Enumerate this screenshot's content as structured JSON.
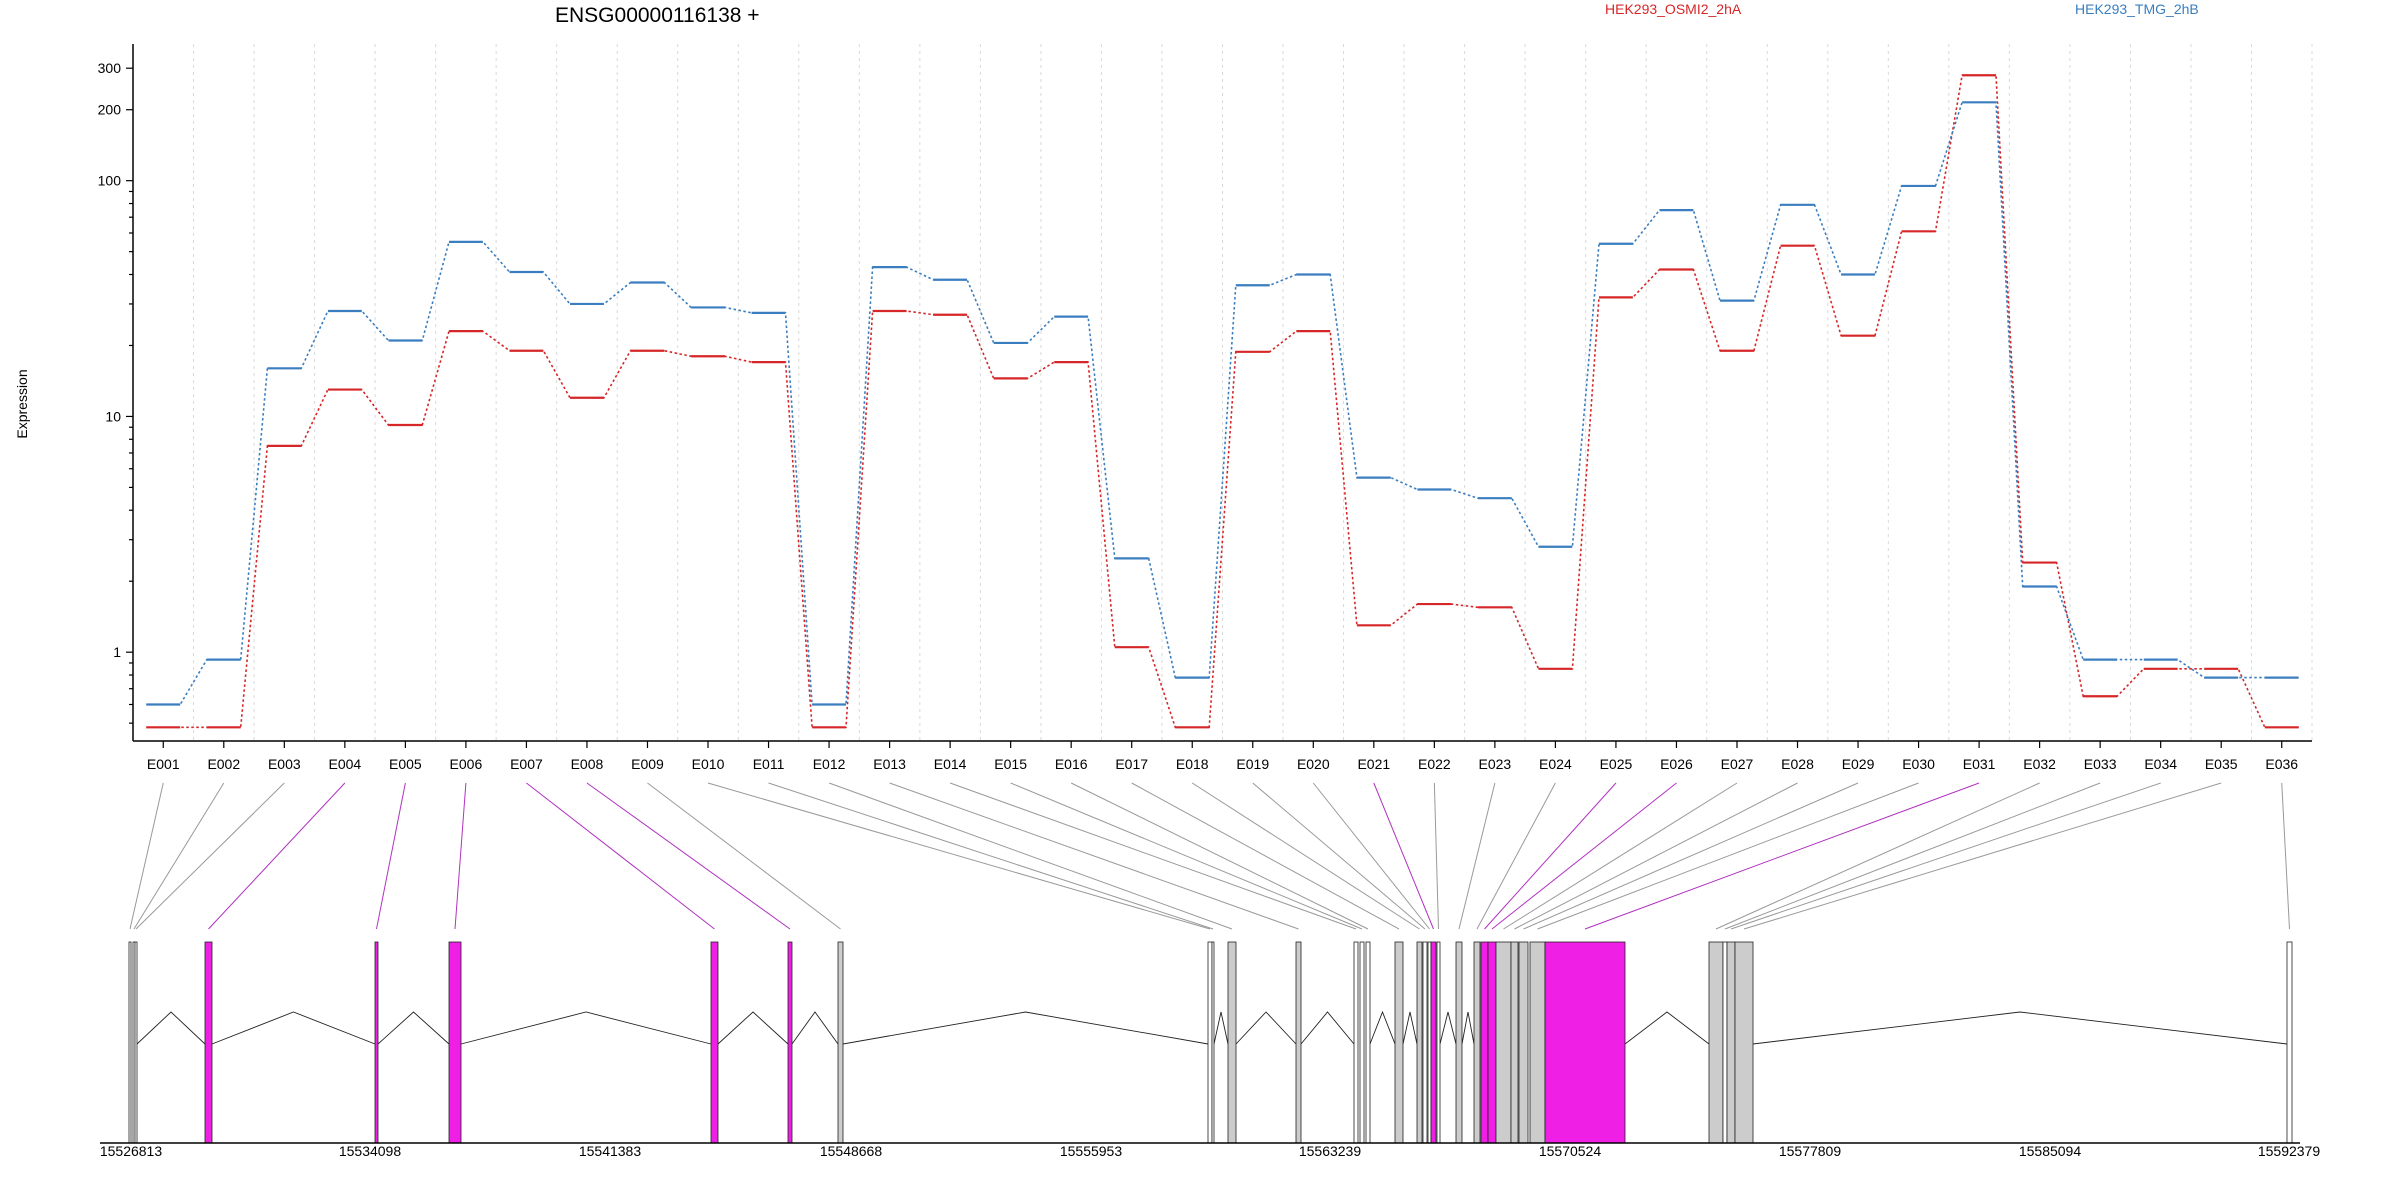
{
  "chart_data": {
    "type": "line",
    "title": "ENSG00000116138 +",
    "ylabel": "Expression",
    "yscale": "log",
    "ylim": [
      0.42,
      380
    ],
    "yticks": [
      1,
      10,
      100,
      200,
      300
    ],
    "grid": true,
    "legend_placement": "top",
    "categories": [
      "E001",
      "E002",
      "E003",
      "E004",
      "E005",
      "E006",
      "E007",
      "E008",
      "E009",
      "E010",
      "E011",
      "E012",
      "E013",
      "E014",
      "E015",
      "E016",
      "E017",
      "E018",
      "E019",
      "E020",
      "E021",
      "E022",
      "E023",
      "E024",
      "E025",
      "E026",
      "E027",
      "E028",
      "E029",
      "E030",
      "E031",
      "E032",
      "E033",
      "E034",
      "E035",
      "E036"
    ],
    "series": [
      {
        "name": "HEK293_OSMI2_2hA",
        "color": "#d62728",
        "values": [
          0.48,
          0.48,
          7.5,
          13,
          9.2,
          23,
          19,
          12,
          19,
          18,
          17,
          0.48,
          28,
          27,
          14.5,
          17,
          1.05,
          0.48,
          18.8,
          23,
          1.3,
          1.6,
          1.55,
          0.85,
          32,
          42,
          19,
          53,
          22,
          61,
          280,
          2.4,
          0.65,
          0.85,
          0.85,
          0.48
        ]
      },
      {
        "name": "HEK293_TMG_2hB",
        "color": "#3a7ebf",
        "values": [
          0.6,
          0.93,
          16,
          28,
          21,
          55,
          41,
          30,
          37,
          29,
          27.5,
          0.6,
          43,
          38,
          20.5,
          26.5,
          2.5,
          0.78,
          36,
          40,
          5.5,
          4.9,
          4.5,
          2.8,
          54,
          75,
          31,
          79,
          40,
          95,
          215,
          1.9,
          0.93,
          0.93,
          0.78,
          0.78
        ]
      }
    ],
    "gene_model": {
      "coordinate_ticks": [
        "15526813",
        "15534098",
        "15541383",
        "15548668",
        "15555953",
        "15563239",
        "15570524",
        "15577809",
        "15585094",
        "15592379"
      ],
      "highlight_color": "#f01fe6",
      "exon_color": "#cccccc",
      "exons": [
        {
          "id": "E001",
          "highlighted": false
        },
        {
          "id": "E002",
          "highlighted": false
        },
        {
          "id": "E003",
          "highlighted": false
        },
        {
          "id": "E004",
          "highlighted": true
        },
        {
          "id": "E005",
          "highlighted": true
        },
        {
          "id": "E006",
          "highlighted": true
        },
        {
          "id": "E007",
          "highlighted": true
        },
        {
          "id": "E008",
          "highlighted": true
        },
        {
          "id": "E009",
          "highlighted": false
        },
        {
          "id": "E010",
          "highlighted": false
        },
        {
          "id": "E011",
          "highlighted": false
        },
        {
          "id": "E012",
          "highlighted": false
        },
        {
          "id": "E013",
          "highlighted": false
        },
        {
          "id": "E014",
          "highlighted": false
        },
        {
          "id": "E015",
          "highlighted": false
        },
        {
          "id": "E016",
          "highlighted": false
        },
        {
          "id": "E017",
          "highlighted": false
        },
        {
          "id": "E018",
          "highlighted": false
        },
        {
          "id": "E019",
          "highlighted": false
        },
        {
          "id": "E020",
          "highlighted": false
        },
        {
          "id": "E021",
          "highlighted": true
        },
        {
          "id": "E022",
          "highlighted": false
        },
        {
          "id": "E023",
          "highlighted": false
        },
        {
          "id": "E024",
          "highlighted": false
        },
        {
          "id": "E025",
          "highlighted": true
        },
        {
          "id": "E026",
          "highlighted": true
        },
        {
          "id": "E027",
          "highlighted": false
        },
        {
          "id": "E028",
          "highlighted": false
        },
        {
          "id": "E029",
          "highlighted": false
        },
        {
          "id": "E030",
          "highlighted": false
        },
        {
          "id": "E031",
          "highlighted": true
        },
        {
          "id": "E032",
          "highlighted": false
        },
        {
          "id": "E033",
          "highlighted": false
        },
        {
          "id": "E034",
          "highlighted": false
        },
        {
          "id": "E035",
          "highlighted": false
        },
        {
          "id": "E036",
          "highlighted": false
        }
      ]
    }
  }
}
